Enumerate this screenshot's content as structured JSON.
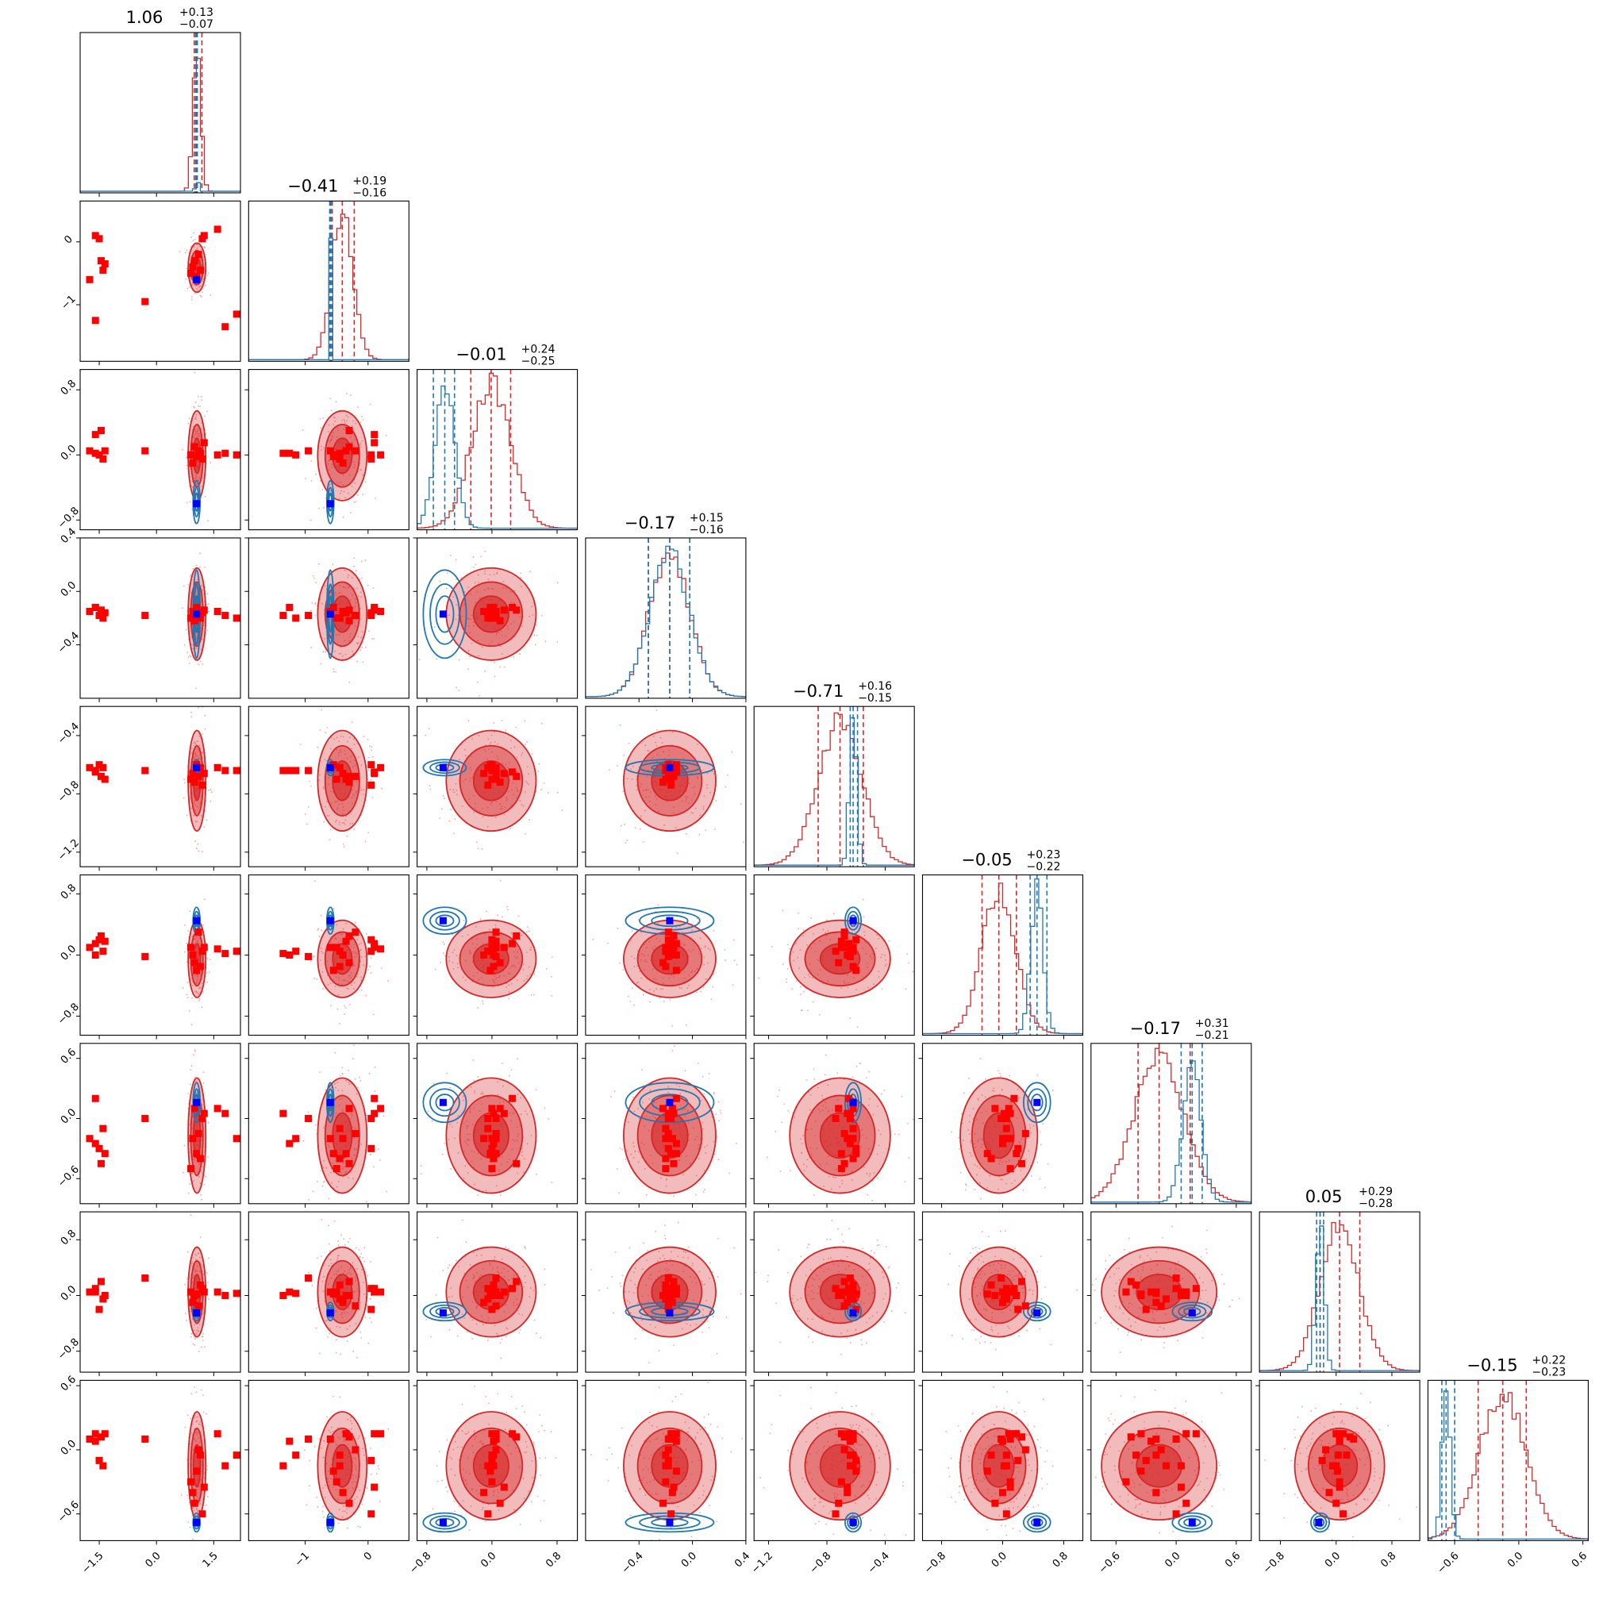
{
  "chart_data": {
    "type": "corner",
    "n_params": 9,
    "colors": {
      "red_posterior": "#d62728",
      "blue_posterior": "#1f77b4",
      "red_marker": "#ff0000",
      "blue_marker": "#0000ff"
    },
    "diagonal_titles": [
      {
        "median": "1.06",
        "plus": "+0.13",
        "minus": "−0.07"
      },
      {
        "median": "−0.41",
        "plus": "+0.19",
        "minus": "−0.16"
      },
      {
        "median": "−0.01",
        "plus": "+0.24",
        "minus": "−0.25"
      },
      {
        "median": "−0.17",
        "plus": "+0.15",
        "minus": "−0.16"
      },
      {
        "median": "−0.71",
        "plus": "+0.16",
        "minus": "−0.15"
      },
      {
        "median": "−0.05",
        "plus": "+0.23",
        "minus": "−0.22"
      },
      {
        "median": "−0.17",
        "plus": "+0.31",
        "minus": "−0.21"
      },
      {
        "median": "0.05",
        "plus": "+0.29",
        "minus": "−0.28"
      },
      {
        "median": "−0.15",
        "plus": "+0.22",
        "minus": "−0.23"
      }
    ],
    "params": [
      {
        "range": [
          -2.0,
          2.2
        ],
        "ticks": [
          -1.5,
          0.0,
          1.5
        ],
        "tick_labels": [
          "−1.5",
          "0.0",
          "1.5"
        ],
        "red": {
          "median": 1.06,
          "sigma": 0.1,
          "lo": 0.99,
          "hi": 1.19
        },
        "blue": {
          "median": 1.05,
          "sigma": 0.02,
          "lo": 1.03,
          "hi": 1.07
        },
        "truth": 1.05
      },
      {
        "range": [
          -1.9,
          0.65
        ],
        "ticks": [
          -1.0,
          0.0
        ],
        "tick_labels": [
          "−1",
          "0"
        ],
        "red": {
          "median": -0.41,
          "sigma": 0.17,
          "lo": -0.57,
          "hi": -0.22
        },
        "blue": {
          "median": -0.6,
          "sigma": 0.01,
          "lo": -0.61,
          "hi": -0.59
        },
        "truth": -0.6
      },
      {
        "range": [
          -0.92,
          1.05
        ],
        "ticks": [
          -0.8,
          0.0,
          0.8
        ],
        "tick_labels": [
          "−0.8",
          "0.0",
          "0.8"
        ],
        "red": {
          "median": -0.01,
          "sigma": 0.24,
          "lo": -0.26,
          "hi": 0.23
        },
        "blue": {
          "median": -0.58,
          "sigma": 0.12,
          "lo": -0.72,
          "hi": -0.46
        },
        "truth": -0.6
      },
      {
        "range": [
          -0.8,
          0.4
        ],
        "ticks": [
          -0.4,
          0.0,
          0.4
        ],
        "tick_labels": [
          "−0.4",
          "0.0",
          "0.4"
        ],
        "red": {
          "median": -0.17,
          "sigma": 0.15,
          "lo": -0.33,
          "hi": -0.02
        },
        "blue": {
          "median": -0.17,
          "sigma": 0.15,
          "lo": -0.33,
          "hi": -0.02
        },
        "truth": -0.17
      },
      {
        "range": [
          -1.3,
          -0.2
        ],
        "ticks": [
          -1.2,
          -0.8,
          -0.4
        ],
        "tick_labels": [
          "−1.2",
          "−0.8",
          "−0.4"
        ],
        "red": {
          "median": -0.71,
          "sigma": 0.15,
          "lo": -0.86,
          "hi": -0.55
        },
        "blue": {
          "median": -0.62,
          "sigma": 0.025,
          "lo": -0.64,
          "hi": -0.59
        },
        "truth": -0.62
      },
      {
        "range": [
          -1.05,
          1.05
        ],
        "ticks": [
          -0.8,
          0.0,
          0.8
        ],
        "tick_labels": [
          "−0.8",
          "0.0",
          "0.8"
        ],
        "red": {
          "median": -0.05,
          "sigma": 0.22,
          "lo": -0.27,
          "hi": 0.18
        },
        "blue": {
          "median": 0.45,
          "sigma": 0.08,
          "lo": 0.36,
          "hi": 0.58
        },
        "truth": 0.45
      },
      {
        "range": [
          -0.85,
          0.75
        ],
        "ticks": [
          -0.6,
          0.0,
          0.6
        ],
        "tick_labels": [
          "−0.6",
          "0.0",
          "0.6"
        ],
        "red": {
          "median": -0.17,
          "sigma": 0.25,
          "lo": -0.38,
          "hi": 0.14
        },
        "blue": {
          "median": 0.16,
          "sigma": 0.09,
          "lo": 0.05,
          "hi": 0.26
        },
        "truth": 0.16
      },
      {
        "range": [
          -1.1,
          1.2
        ],
        "ticks": [
          -0.8,
          0.0,
          0.8
        ],
        "tick_labels": [
          "−0.8",
          "0.0",
          "0.8"
        ],
        "red": {
          "median": 0.05,
          "sigma": 0.28,
          "lo": -0.23,
          "hi": 0.34
        },
        "blue": {
          "median": -0.23,
          "sigma": 0.06,
          "lo": -0.28,
          "hi": -0.18
        },
        "truth": -0.25
      },
      {
        "range": [
          -0.85,
          0.65
        ],
        "ticks": [
          -0.6,
          0.0,
          0.6
        ],
        "tick_labels": [
          "−0.6",
          "0.0",
          "0.6"
        ],
        "red": {
          "median": -0.15,
          "sigma": 0.22,
          "lo": -0.38,
          "hi": 0.07
        },
        "blue": {
          "median": -0.68,
          "sigma": 0.04,
          "lo": -0.72,
          "hi": -0.6
        },
        "truth": -0.68
      }
    ],
    "red_markers": [
      [
        -1.75,
        -0.6,
        0.05,
        -0.15,
        -0.62,
        0.1,
        -0.2,
        0.05,
        0.1
      ],
      [
        -1.6,
        0.1,
        0.25,
        -0.12,
        -0.65,
        0.15,
        0.2,
        0.1,
        0.15
      ],
      [
        -1.5,
        0.05,
        0.0,
        -0.18,
        -0.6,
        0.2,
        -0.3,
        -0.2,
        -0.1
      ],
      [
        -1.45,
        -0.3,
        0.3,
        -0.14,
        -0.68,
        0.25,
        -0.45,
        0.2,
        0.12
      ],
      [
        -1.4,
        -0.45,
        -0.05,
        -0.2,
        -0.62,
        0.05,
        -0.1,
        -0.05,
        -0.15
      ],
      [
        -1.35,
        -0.35,
        0.05,
        -0.16,
        -0.7,
        0.18,
        -0.35,
        0.0,
        0.15
      ],
      [
        -1.6,
        -1.25,
        0.02,
        -0.12,
        -0.64,
        0.0,
        -0.25,
        0.05,
        0.08
      ],
      [
        -0.3,
        -0.95,
        0.05,
        -0.18,
        -0.64,
        -0.02,
        0.0,
        0.25,
        0.1
      ],
      [
        0.9,
        -0.5,
        0.0,
        -0.2,
        -0.7,
        0.1,
        -0.5,
        0.05,
        -0.3
      ],
      [
        0.95,
        -0.4,
        -0.1,
        -0.15,
        -0.66,
        0.0,
        -0.2,
        -0.1,
        -0.4
      ],
      [
        1.0,
        -0.3,
        0.1,
        -0.22,
        -0.72,
        -0.1,
        0.1,
        0.0,
        -0.5
      ],
      [
        1.05,
        -0.55,
        -0.02,
        -0.12,
        -0.6,
        -0.2,
        -0.35,
        0.02,
        -0.2
      ],
      [
        1.1,
        -0.2,
        0.05,
        -0.18,
        -0.68,
        0.3,
        -0.15,
        -0.15,
        0.0
      ],
      [
        1.2,
        0.05,
        -0.05,
        -0.16,
        -0.74,
        0.05,
        0.0,
        0.1,
        -0.6
      ],
      [
        1.15,
        -0.45,
        0.02,
        -0.2,
        -0.62,
        -0.15,
        -0.4,
        0.15,
        -0.05
      ],
      [
        1.25,
        0.1,
        0.15,
        -0.14,
        -0.66,
        0.1,
        0.05,
        0.05,
        -0.35
      ],
      [
        1.6,
        0.2,
        0.0,
        -0.15,
        -0.62,
        0.08,
        0.1,
        0.05,
        0.15
      ],
      [
        1.8,
        -1.35,
        0.02,
        -0.18,
        -0.64,
        0.02,
        0.05,
        0.0,
        -0.15
      ],
      [
        2.1,
        -1.15,
        0.0,
        -0.2,
        -0.64,
        0.05,
        -0.2,
        0.03,
        -0.05
      ]
    ]
  }
}
